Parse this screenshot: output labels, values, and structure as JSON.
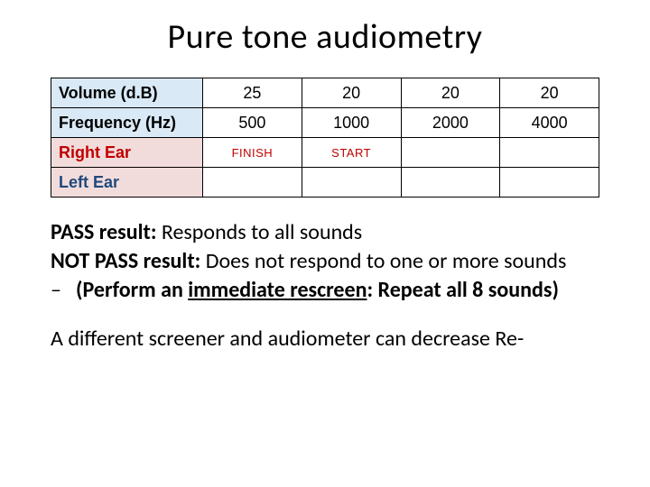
{
  "title": "Pure tone audiometry",
  "table": {
    "columns_count": 5,
    "header_bg_primary": "#d9e9f5",
    "header_bg_secondary": "#f2dcdb",
    "border_color": "#000000",
    "right_ear_color": "#c00000",
    "left_ear_color": "#1f497d",
    "status_color": "#c00000",
    "rows": {
      "volume": {
        "label": "Volume (d.B)",
        "cells": [
          "25",
          "20",
          "20",
          "20"
        ]
      },
      "freq": {
        "label": "Frequency (Hz)",
        "cells": [
          "500",
          "1000",
          "2000",
          "4000"
        ]
      },
      "rightEar": {
        "label": "Right Ear",
        "cells": [
          "FINISH",
          "START",
          "",
          ""
        ]
      },
      "leftEar": {
        "label": "Left Ear",
        "cells": [
          "",
          "",
          "",
          ""
        ]
      }
    }
  },
  "body": {
    "pass_label": "PASS result:",
    "pass_text": " Responds to all sounds",
    "notpass_label": "NOT PASS result:",
    "notpass_text": " Does not respond to one or more sounds",
    "bullet_dash": "–",
    "bullet_lead": "(Perform an ",
    "bullet_underline": "immediate rescreen",
    "bullet_tail": ": Repeat all 8 sounds)",
    "footer": "A different screener and audiometer can decrease Re-"
  },
  "style": {
    "title_fontsize": 38,
    "body_fontsize": 24,
    "table_fontsize": 18,
    "background": "#ffffff",
    "text_color": "#000000"
  }
}
